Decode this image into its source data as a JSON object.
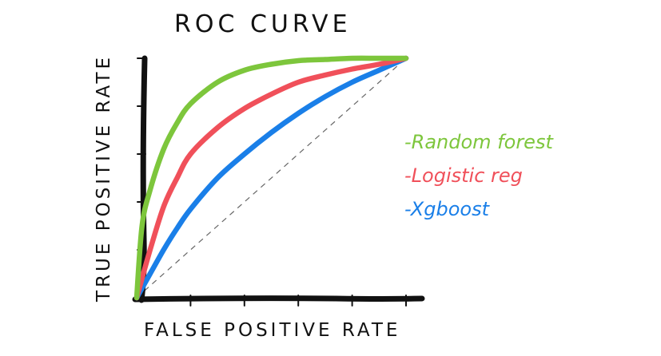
{
  "chart_data": {
    "type": "line",
    "title": "ROC CURVE",
    "xlabel": "FALSE POSITIVE RATE",
    "ylabel": "TRUE POSITIVE RATE",
    "xlim": [
      0,
      1
    ],
    "ylim": [
      0,
      1
    ],
    "grid": false,
    "legend_position": "right",
    "x_ticks": [
      0.2,
      0.4,
      0.6,
      0.8,
      1.0
    ],
    "y_ticks": [
      0.2,
      0.4,
      0.6,
      0.8,
      1.0
    ],
    "diagonal_reference": true,
    "series": [
      {
        "name": "-Random forest",
        "color": "#7dc63c",
        "x": [
          0,
          0.02,
          0.05,
          0.1,
          0.15,
          0.2,
          0.3,
          0.4,
          0.5,
          0.6,
          0.7,
          0.8,
          0.9,
          1.0
        ],
        "y": [
          0,
          0.3,
          0.45,
          0.62,
          0.73,
          0.81,
          0.9,
          0.95,
          0.975,
          0.99,
          0.995,
          1.0,
          1.0,
          1.0
        ]
      },
      {
        "name": "-Logistic reg",
        "color": "#f0505a",
        "x": [
          0,
          0.05,
          0.1,
          0.15,
          0.2,
          0.3,
          0.4,
          0.5,
          0.6,
          0.7,
          0.8,
          0.9,
          1.0
        ],
        "y": [
          0,
          0.2,
          0.38,
          0.5,
          0.6,
          0.71,
          0.79,
          0.85,
          0.9,
          0.93,
          0.955,
          0.975,
          1.0
        ]
      },
      {
        "name": "-Xgboost",
        "color": "#1a7fe8",
        "x": [
          0,
          0.05,
          0.1,
          0.15,
          0.2,
          0.3,
          0.4,
          0.5,
          0.6,
          0.7,
          0.8,
          0.9,
          1.0
        ],
        "y": [
          0,
          0.1,
          0.2,
          0.29,
          0.37,
          0.5,
          0.6,
          0.69,
          0.77,
          0.84,
          0.9,
          0.95,
          1.0
        ]
      }
    ]
  }
}
